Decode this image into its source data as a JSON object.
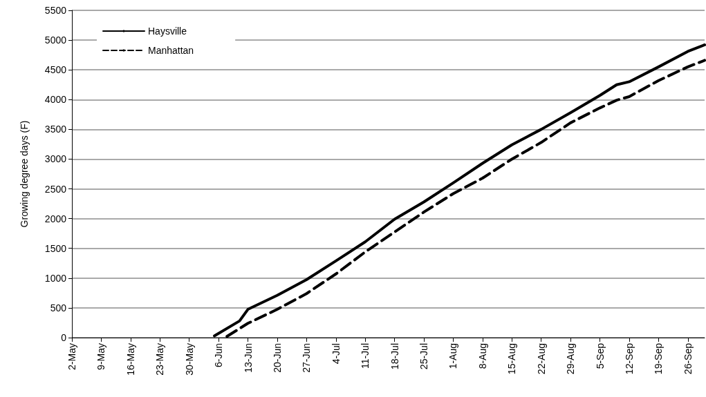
{
  "chart_data": {
    "type": "line",
    "ylabel": "Growing degree days (F)",
    "xlim": [
      "--05-02",
      "--09-30"
    ],
    "ylim": [
      0,
      5500
    ],
    "yticks": [
      0,
      500,
      1000,
      1500,
      2000,
      2500,
      3000,
      3500,
      4000,
      4500,
      5000,
      5500
    ],
    "xticks": [
      {
        "value": "--05-02",
        "label": "2-May"
      },
      {
        "value": "--05-09",
        "label": "9-May"
      },
      {
        "value": "--05-16",
        "label": "16-May"
      },
      {
        "value": "--05-23",
        "label": "23-May"
      },
      {
        "value": "--05-30",
        "label": "30-May"
      },
      {
        "value": "--06-06",
        "label": "6-Jun"
      },
      {
        "value": "--06-13",
        "label": "13-Jun"
      },
      {
        "value": "--06-20",
        "label": "20-Jun"
      },
      {
        "value": "--06-27",
        "label": "27-Jun"
      },
      {
        "value": "--07-04",
        "label": "4-Jul"
      },
      {
        "value": "--07-11",
        "label": "11-Jul"
      },
      {
        "value": "--07-18",
        "label": "18-Jul"
      },
      {
        "value": "--07-25",
        "label": "25-Jul"
      },
      {
        "value": "--08-01",
        "label": "1-Aug"
      },
      {
        "value": "--08-08",
        "label": "8-Aug"
      },
      {
        "value": "--08-15",
        "label": "15-Aug"
      },
      {
        "value": "--08-22",
        "label": "22-Aug"
      },
      {
        "value": "--08-29",
        "label": "29-Aug"
      },
      {
        "value": "--09-05",
        "label": "5-Sep"
      },
      {
        "value": "--09-12",
        "label": "12-Sep"
      },
      {
        "value": "--09-19",
        "label": "19-Sep"
      },
      {
        "value": "--09-26",
        "label": "26-Sep"
      }
    ],
    "grid": "y",
    "legend": "top left",
    "marker": "none",
    "series": [
      {
        "name": "Haysville",
        "color": "#000000",
        "line_style": "solid",
        "x": [
          "--06-05",
          "--06-11",
          "--06-13",
          "--06-20",
          "--06-27",
          "--07-04",
          "--07-11",
          "--07-18",
          "--07-25",
          "--08-01",
          "--08-08",
          "--08-15",
          "--08-22",
          "--08-29",
          "--09-05",
          "--09-09",
          "--09-12",
          "--09-19",
          "--09-26",
          "--09-30"
        ],
        "values": [
          30,
          280,
          475,
          710,
          975,
          1290,
          1610,
          1990,
          2280,
          2600,
          2930,
          3240,
          3500,
          3780,
          4070,
          4250,
          4300,
          4550,
          4810,
          4920
        ]
      },
      {
        "name": "Manhattan",
        "color": "#000000",
        "line_style": "dashed",
        "x": [
          "--06-08",
          "--06-13",
          "--06-20",
          "--06-27",
          "--07-04",
          "--07-11",
          "--07-18",
          "--07-25",
          "--08-01",
          "--08-08",
          "--08-15",
          "--08-22",
          "--08-29",
          "--09-05",
          "--09-09",
          "--09-12",
          "--09-19",
          "--09-26",
          "--09-30"
        ],
        "values": [
          20,
          240,
          475,
          740,
          1070,
          1440,
          1775,
          2110,
          2420,
          2680,
          3000,
          3280,
          3610,
          3860,
          3990,
          4050,
          4320,
          4550,
          4660
        ]
      }
    ]
  }
}
